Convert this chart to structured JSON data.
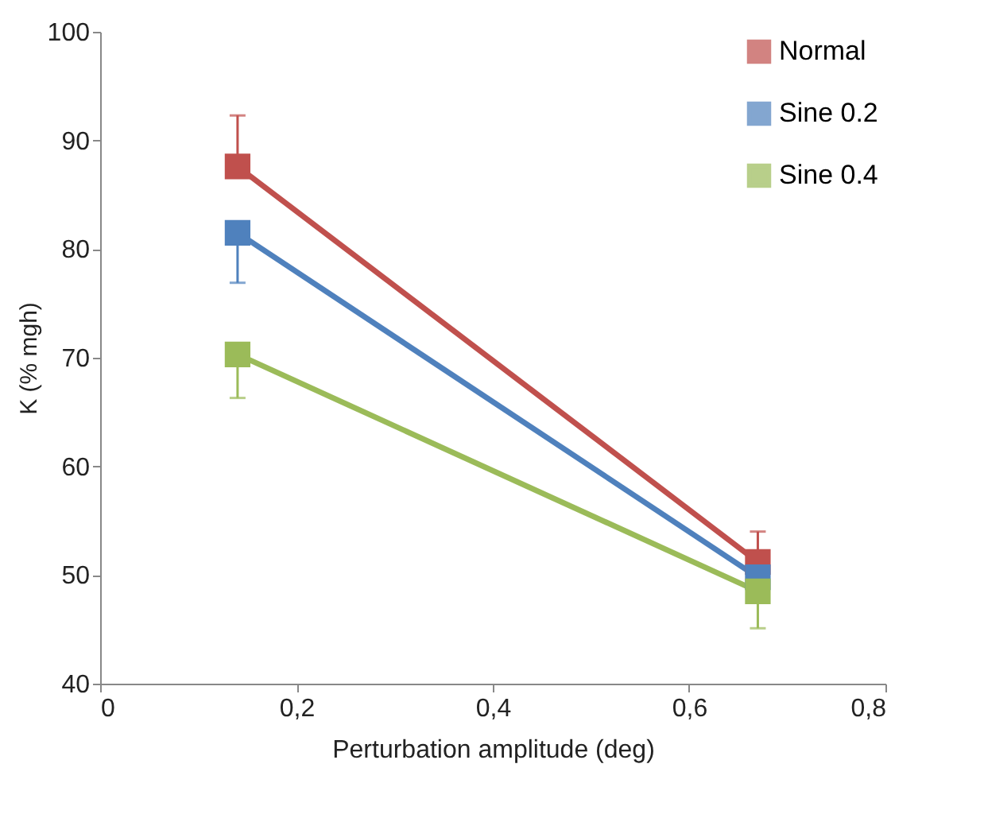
{
  "chart_data": {
    "type": "line",
    "xlabel": "Perturbation amplitude  (deg)",
    "ylabel": "K (% mgh)",
    "x": [
      0.14,
      0.67
    ],
    "series": [
      {
        "name": "Normal",
        "color": "#c0504d",
        "values": [
          87.6,
          51.2
        ],
        "errors": [
          [
            87.6,
            92.3
          ],
          [
            51.2,
            54.0
          ]
        ]
      },
      {
        "name": "Sine 0.2",
        "color": "#4f81bd",
        "values": [
          81.5,
          49.8
        ],
        "errors": [
          [
            76.9,
            81.5
          ],
          [
            49.8,
            49.8
          ]
        ]
      },
      {
        "name": "Sine 0.4",
        "color": "#9bbb59",
        "values": [
          70.3,
          48.5
        ],
        "errors": [
          [
            66.3,
            70.3
          ],
          [
            45.1,
            48.5
          ]
        ]
      }
    ],
    "xlim": [
      0,
      0.8
    ],
    "xticks": [
      0,
      {
        "value": 0.2,
        "label": "0,2"
      },
      {
        "value": 0.4,
        "label": "0,4"
      },
      {
        "value": 0.6,
        "label": "0,6"
      },
      {
        "value": 0.8,
        "label": "0,8"
      }
    ],
    "ylim": [
      40,
      100
    ],
    "yticks": [
      40,
      50,
      60,
      70,
      80,
      90,
      100
    ],
    "grid": false,
    "legend": "top right",
    "marker": "square",
    "line_style": "solid"
  }
}
